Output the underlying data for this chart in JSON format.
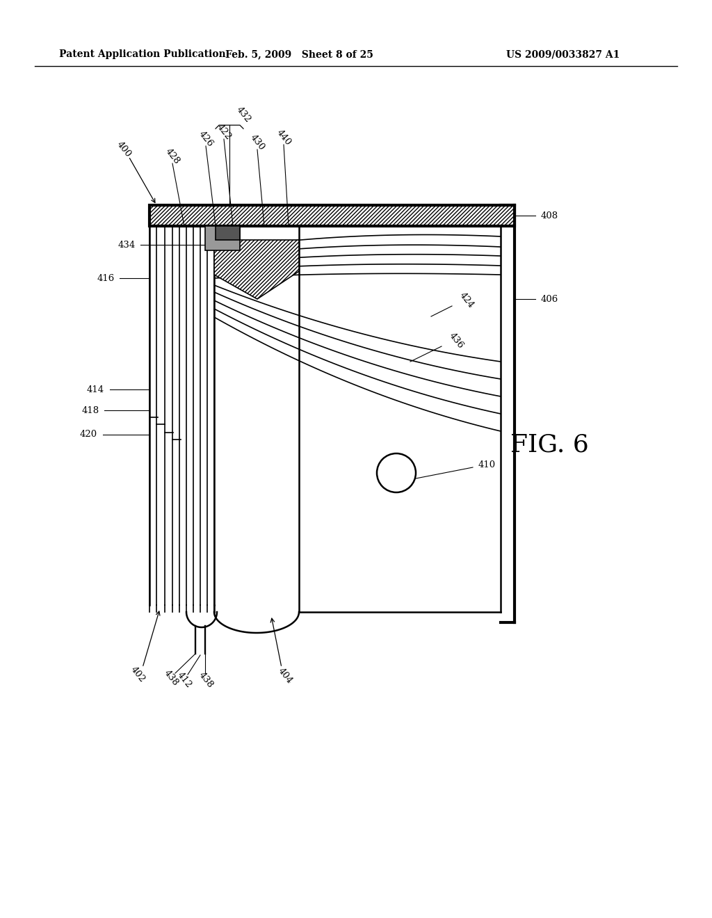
{
  "header_left": "Patent Application Publication",
  "header_mid": "Feb. 5, 2009   Sheet 8 of 25",
  "header_right": "US 2009/0033827 A1",
  "fig_label": "FIG. 6",
  "background_color": "#ffffff",
  "line_color": "#000000"
}
